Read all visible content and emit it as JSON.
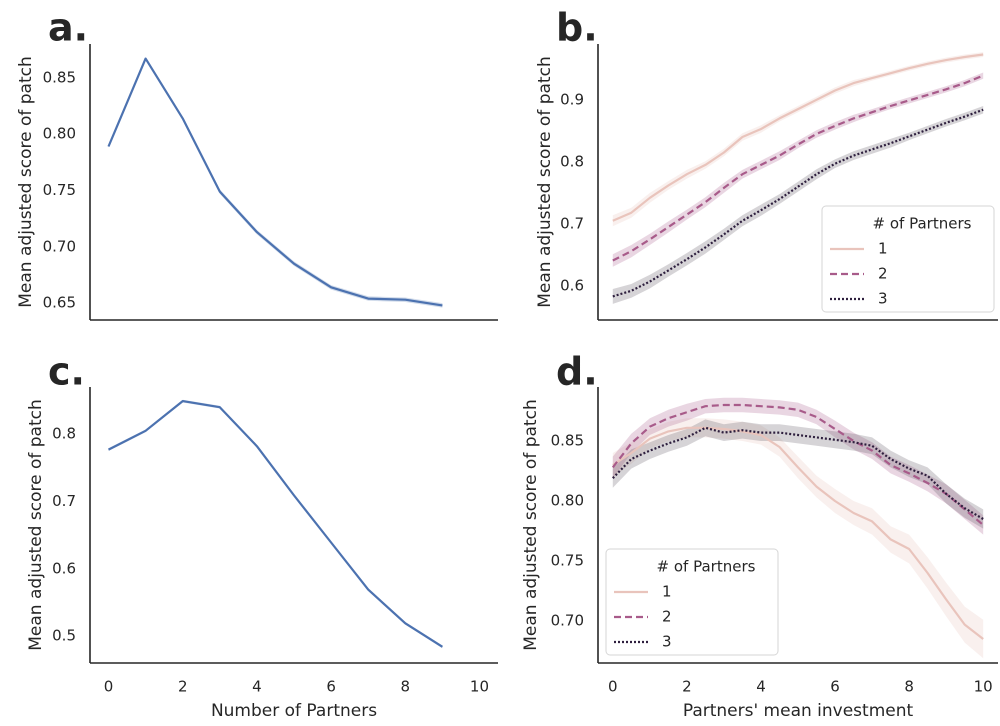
{
  "chart_data": [
    {
      "id": "a",
      "panel_label": "a.",
      "type": "line",
      "xlabel": "",
      "ylabel": "Mean adjusted score of patch",
      "xlim": [
        -0.5,
        10.5
      ],
      "ylim": [
        0.635,
        0.88
      ],
      "xticks": [],
      "yticks": [
        0.65,
        0.7,
        0.75,
        0.8,
        0.85
      ],
      "ytick_labels": [
        "0.65",
        "0.70",
        "0.75",
        "0.80",
        "0.85"
      ],
      "grid": false,
      "series": [
        {
          "color": "#4c72b0",
          "band_color": "#4c72b0",
          "dash": "",
          "x": [
            0,
            1,
            2,
            3,
            4,
            5,
            6,
            7,
            8,
            9
          ],
          "y": [
            0.789,
            0.867,
            0.814,
            0.749,
            0.713,
            0.685,
            0.664,
            0.654,
            0.653,
            0.648
          ],
          "ci": [
            0.001,
            0.001,
            0.001,
            0.002,
            0.002,
            0.002,
            0.002,
            0.002,
            0.002,
            0.002
          ]
        }
      ]
    },
    {
      "id": "b",
      "panel_label": "b.",
      "type": "line",
      "xlabel": "",
      "ylabel": "Mean adjusted score of patch",
      "xlim": [
        -0.4,
        10.4
      ],
      "ylim": [
        0.545,
        0.99
      ],
      "xticks": [],
      "yticks": [
        0.6,
        0.7,
        0.8,
        0.9
      ],
      "ytick_labels": [
        "0.6",
        "0.7",
        "0.8",
        "0.9"
      ],
      "grid": false,
      "legend": {
        "title": "# of Partners",
        "placement": "lower-right"
      },
      "series": [
        {
          "name": "1",
          "color": "#e9c4bc",
          "band_color": "#e9c4bc",
          "dash": "",
          "x": [
            0,
            0.5,
            1,
            1.5,
            2,
            2.5,
            3,
            3.5,
            4,
            4.5,
            5,
            5.5,
            6,
            6.5,
            7,
            7.5,
            8,
            8.5,
            9,
            9.5,
            10
          ],
          "y": [
            0.705,
            0.718,
            0.742,
            0.762,
            0.78,
            0.795,
            0.815,
            0.84,
            0.853,
            0.87,
            0.885,
            0.9,
            0.915,
            0.927,
            0.935,
            0.943,
            0.951,
            0.958,
            0.964,
            0.969,
            0.973
          ],
          "ci": [
            0.009,
            0.008,
            0.008,
            0.007,
            0.007,
            0.006,
            0.006,
            0.006,
            0.006,
            0.005,
            0.005,
            0.005,
            0.005,
            0.005,
            0.004,
            0.004,
            0.004,
            0.004,
            0.004,
            0.004,
            0.004
          ]
        },
        {
          "name": "2",
          "color": "#a85b8a",
          "band_color": "#a85b8a",
          "dash": "7,4",
          "x": [
            0,
            0.5,
            1,
            1.5,
            2,
            2.5,
            3,
            3.5,
            4,
            4.5,
            5,
            5.5,
            6,
            6.5,
            7,
            7.5,
            8,
            8.5,
            9,
            9.5,
            10
          ],
          "y": [
            0.641,
            0.656,
            0.675,
            0.695,
            0.715,
            0.735,
            0.758,
            0.78,
            0.795,
            0.81,
            0.828,
            0.845,
            0.858,
            0.87,
            0.88,
            0.89,
            0.899,
            0.908,
            0.917,
            0.927,
            0.939
          ],
          "ci": [
            0.01,
            0.01,
            0.009,
            0.009,
            0.008,
            0.008,
            0.008,
            0.007,
            0.007,
            0.007,
            0.006,
            0.006,
            0.006,
            0.006,
            0.005,
            0.005,
            0.005,
            0.005,
            0.005,
            0.005,
            0.005
          ]
        },
        {
          "name": "3",
          "color": "#2e1f3e",
          "band_color": "#5a5560",
          "dash": "2,2",
          "x": [
            0,
            0.5,
            1,
            1.5,
            2,
            2.5,
            3,
            3.5,
            4,
            4.5,
            5,
            5.5,
            6,
            6.5,
            7,
            7.5,
            8,
            8.5,
            9,
            9.5,
            10
          ],
          "y": [
            0.583,
            0.592,
            0.607,
            0.625,
            0.643,
            0.662,
            0.683,
            0.705,
            0.722,
            0.74,
            0.76,
            0.78,
            0.797,
            0.81,
            0.82,
            0.83,
            0.841,
            0.852,
            0.863,
            0.873,
            0.884
          ],
          "ci": [
            0.012,
            0.011,
            0.011,
            0.01,
            0.01,
            0.01,
            0.009,
            0.009,
            0.009,
            0.008,
            0.008,
            0.008,
            0.007,
            0.007,
            0.007,
            0.007,
            0.006,
            0.006,
            0.006,
            0.006,
            0.006
          ]
        }
      ]
    },
    {
      "id": "c",
      "panel_label": "c.",
      "type": "line",
      "xlabel": "Number of Partners",
      "ylabel": "Mean adjusted score of patch",
      "xlim": [
        -0.5,
        10.5
      ],
      "ylim": [
        0.46,
        0.87
      ],
      "xticks": [
        0,
        2,
        4,
        6,
        8,
        10
      ],
      "xtick_labels": [
        "0",
        "2",
        "4",
        "6",
        "8",
        "10"
      ],
      "yticks": [
        0.5,
        0.6,
        0.7,
        0.8
      ],
      "ytick_labels": [
        "0.5",
        "0.6",
        "0.7",
        "0.8"
      ],
      "grid": false,
      "series": [
        {
          "color": "#4c72b0",
          "band_color": "#4c72b0",
          "dash": "",
          "x": [
            0,
            1,
            2,
            3,
            4,
            5,
            6,
            7,
            8,
            9
          ],
          "y": [
            0.777,
            0.805,
            0.849,
            0.84,
            0.782,
            0.709,
            0.639,
            0.569,
            0.519,
            0.484
          ],
          "ci": [
            0.002,
            0.002,
            0.002,
            0.002,
            0.002,
            0.002,
            0.002,
            0.002,
            0.002,
            0.002
          ]
        }
      ]
    },
    {
      "id": "d",
      "panel_label": "d.",
      "type": "line",
      "xlabel": "Partners' mean investment",
      "ylabel": "Mean adjusted score of patch",
      "xlim": [
        -0.4,
        10.4
      ],
      "ylim": [
        0.665,
        0.895
      ],
      "xticks": [
        0,
        2,
        4,
        6,
        8,
        10
      ],
      "xtick_labels": [
        "0",
        "2",
        "4",
        "6",
        "8",
        "10"
      ],
      "yticks": [
        0.7,
        0.75,
        0.8,
        0.85
      ],
      "ytick_labels": [
        "0.70",
        "0.75",
        "0.80",
        "0.85"
      ],
      "grid": false,
      "legend": {
        "title": "# of Partners",
        "placement": "lower-left"
      },
      "series": [
        {
          "name": "1",
          "color": "#e9c4bc",
          "band_color": "#e9c4bc",
          "dash": "",
          "x": [
            0,
            0.5,
            1,
            1.5,
            2,
            2.5,
            3,
            3.5,
            4,
            4.5,
            5,
            5.5,
            6,
            6.5,
            7,
            7.5,
            8,
            8.5,
            9,
            9.5,
            10
          ],
          "y": [
            0.83,
            0.84,
            0.852,
            0.858,
            0.861,
            0.861,
            0.86,
            0.858,
            0.855,
            0.845,
            0.828,
            0.812,
            0.8,
            0.79,
            0.783,
            0.768,
            0.76,
            0.74,
            0.718,
            0.697,
            0.685
          ],
          "ci": [
            0.01,
            0.009,
            0.008,
            0.008,
            0.008,
            0.008,
            0.008,
            0.008,
            0.008,
            0.008,
            0.009,
            0.009,
            0.01,
            0.01,
            0.011,
            0.011,
            0.012,
            0.013,
            0.014,
            0.015,
            0.016
          ]
        },
        {
          "name": "2",
          "color": "#a85b8a",
          "band_color": "#a85b8a",
          "dash": "7,4",
          "x": [
            0,
            0.5,
            1,
            1.5,
            2,
            2.5,
            3,
            3.5,
            4,
            4.5,
            5,
            5.5,
            6,
            6.5,
            7,
            7.5,
            8,
            8.5,
            9,
            9.5,
            10
          ],
          "y": [
            0.828,
            0.848,
            0.862,
            0.869,
            0.874,
            0.879,
            0.88,
            0.88,
            0.879,
            0.878,
            0.876,
            0.87,
            0.86,
            0.85,
            0.842,
            0.83,
            0.823,
            0.815,
            0.806,
            0.793,
            0.78
          ],
          "ci": [
            0.009,
            0.008,
            0.007,
            0.007,
            0.007,
            0.006,
            0.006,
            0.006,
            0.006,
            0.006,
            0.006,
            0.006,
            0.007,
            0.007,
            0.007,
            0.007,
            0.007,
            0.007,
            0.008,
            0.008,
            0.008
          ]
        },
        {
          "name": "3",
          "color": "#2e1f3e",
          "band_color": "#5a5560",
          "dash": "2,2",
          "x": [
            0,
            0.5,
            1,
            1.5,
            2,
            2.5,
            3,
            3.5,
            4,
            4.5,
            5,
            5.5,
            6,
            6.5,
            7,
            7.5,
            8,
            8.5,
            9,
            9.5,
            10
          ],
          "y": [
            0.819,
            0.835,
            0.842,
            0.848,
            0.853,
            0.861,
            0.857,
            0.859,
            0.857,
            0.857,
            0.855,
            0.853,
            0.851,
            0.849,
            0.846,
            0.835,
            0.827,
            0.821,
            0.806,
            0.794,
            0.785
          ],
          "ci": [
            0.008,
            0.008,
            0.007,
            0.007,
            0.007,
            0.007,
            0.007,
            0.007,
            0.007,
            0.007,
            0.007,
            0.007,
            0.007,
            0.007,
            0.007,
            0.007,
            0.007,
            0.007,
            0.008,
            0.008,
            0.008
          ]
        }
      ]
    }
  ]
}
